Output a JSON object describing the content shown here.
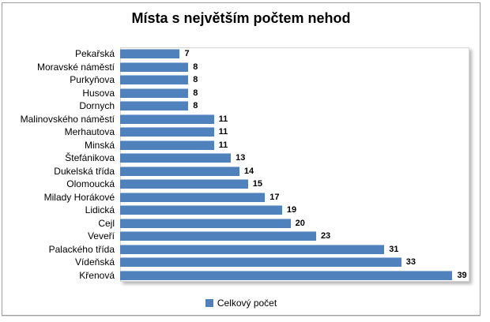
{
  "title": "Místa s největším počtem nehod",
  "legend": {
    "label": "Celkový počet"
  },
  "colors": {
    "bar": "#4f81bd",
    "chart_border": "#9e9e9e",
    "plot_border": "#d4d4d4",
    "text": "#000000"
  },
  "chart_data": {
    "type": "bar",
    "orientation": "horizontal",
    "title": "Místa s největším počtem nehod",
    "series_name": "Celkový počet",
    "categories": [
      "Pekařská",
      "Moravské náměstí",
      "Purkyňova",
      "Husova",
      "Dornych",
      "Malinovského náměstí",
      "Merhautova",
      "Minská",
      "Štefánikova",
      "Dukelská třída",
      "Olomoucká",
      "Milady Horákové",
      "Lidická",
      "Cejl",
      "Veveří",
      "Palackého třída",
      "Vídeňská",
      "Křenová"
    ],
    "values": [
      7,
      8,
      8,
      8,
      8,
      11,
      11,
      11,
      13,
      14,
      15,
      17,
      19,
      20,
      23,
      31,
      33,
      39
    ],
    "xlabel": "",
    "ylabel": "",
    "xlim": [
      0,
      41
    ],
    "data_labels": true,
    "grid": false,
    "legend_position": "bottom"
  }
}
